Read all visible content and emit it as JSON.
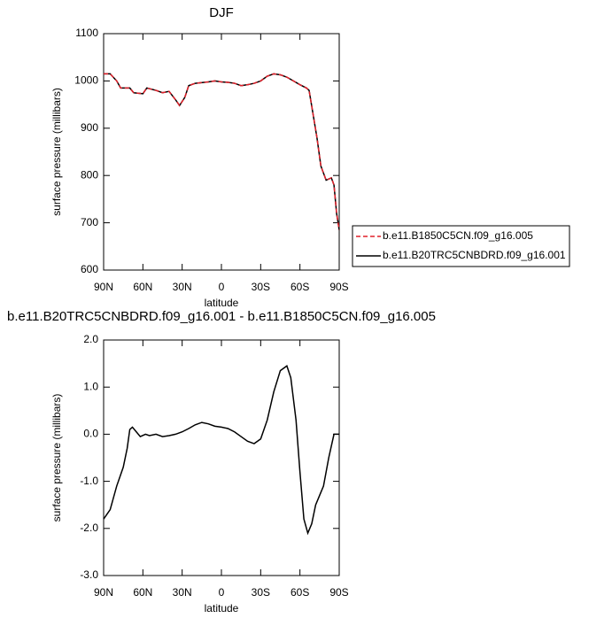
{
  "chart_data": [
    {
      "type": "line",
      "title": "DJF",
      "x_label": "latitude",
      "y_label": "surface pressure (millibars)",
      "xlim": [
        90,
        -90
      ],
      "xticks": [
        {
          "value": 90,
          "label": "90N"
        },
        {
          "value": 60,
          "label": "60N"
        },
        {
          "value": 30,
          "label": "30N"
        },
        0,
        {
          "value": -30,
          "label": "30S"
        },
        {
          "value": -60,
          "label": "60S"
        },
        {
          "value": -90,
          "label": "90S"
        }
      ],
      "ylim": [
        600,
        1100
      ],
      "yticks": [
        600,
        700,
        800,
        900,
        1000,
        1100
      ],
      "legend_position": "right",
      "x": [
        90,
        85,
        80,
        77,
        70,
        67,
        60,
        57,
        50,
        45,
        40,
        35,
        32,
        28,
        25,
        20,
        10,
        5,
        0,
        -5,
        -10,
        -15,
        -20,
        -25,
        -30,
        -35,
        -40,
        -45,
        -50,
        -55,
        -60,
        -65,
        -67,
        -70,
        -73,
        -76,
        -80,
        -84,
        -86,
        -88,
        -90
      ],
      "series": [
        {
          "name": "b.e11.B1850C5CN.f09_g16.005",
          "color": "#e0202a",
          "dash": true,
          "values": [
            1015,
            1015,
            1000,
            985,
            985,
            975,
            973,
            985,
            980,
            975,
            978,
            960,
            948,
            965,
            990,
            995,
            998,
            1000,
            998,
            997,
            995,
            990,
            992,
            995,
            1000,
            1010,
            1015,
            1013,
            1008,
            1000,
            992,
            985,
            980,
            930,
            880,
            820,
            790,
            795,
            780,
            720,
            685
          ]
        },
        {
          "name": "b.e11.B20TRC5CNBDRD.f09_g16.001",
          "color": "#000000",
          "dash": false,
          "values": [
            1015,
            1015,
            1000,
            985,
            985,
            975,
            973,
            985,
            980,
            975,
            978,
            960,
            948,
            965,
            990,
            995,
            998,
            1000,
            998,
            997,
            995,
            990,
            992,
            995,
            1000,
            1010,
            1015,
            1013,
            1008,
            1000,
            992,
            985,
            980,
            930,
            880,
            820,
            790,
            795,
            780,
            720,
            685
          ]
        }
      ]
    },
    {
      "type": "line",
      "title": "b.e11.B20TRC5CNBDRD.f09_g16.001 - b.e11.B1850C5CN.f09_g16.005",
      "x_label": "latitude",
      "y_label": "surface pressure (millibars)",
      "xlim": [
        90,
        -90
      ],
      "xticks": [
        {
          "value": 90,
          "label": "90N"
        },
        {
          "value": 60,
          "label": "60N"
        },
        {
          "value": 30,
          "label": "30N"
        },
        0,
        {
          "value": -30,
          "label": "30S"
        },
        {
          "value": -60,
          "label": "60S"
        },
        {
          "value": -90,
          "label": "90S"
        }
      ],
      "ylim": [
        -3,
        2
      ],
      "yticks": [
        {
          "value": -3,
          "label": "-3.0"
        },
        {
          "value": -2,
          "label": "-2.0"
        },
        {
          "value": -1,
          "label": "-1.0"
        },
        {
          "value": 0,
          "label": "0.0"
        },
        {
          "value": 1,
          "label": "1.0"
        },
        {
          "value": 2,
          "label": "2.0"
        }
      ],
      "x": [
        90,
        85,
        80,
        75,
        72,
        70,
        68,
        65,
        62,
        58,
        55,
        50,
        45,
        40,
        35,
        30,
        25,
        20,
        15,
        10,
        5,
        0,
        -5,
        -10,
        -15,
        -20,
        -25,
        -30,
        -35,
        -40,
        -45,
        -50,
        -53,
        -57,
        -60,
        -63,
        -66,
        -69,
        -72,
        -75,
        -78,
        -82,
        -86,
        -90
      ],
      "series": [
        {
          "color": "#000000",
          "values": [
            -1.8,
            -1.6,
            -1.1,
            -0.7,
            -0.3,
            0.1,
            0.15,
            0.05,
            -0.05,
            0.0,
            -0.03,
            0.0,
            -0.05,
            -0.03,
            0.0,
            0.05,
            0.12,
            0.2,
            0.25,
            0.22,
            0.17,
            0.15,
            0.12,
            0.05,
            -0.05,
            -0.15,
            -0.2,
            -0.1,
            0.3,
            0.9,
            1.35,
            1.45,
            1.2,
            0.3,
            -0.8,
            -1.8,
            -2.1,
            -1.9,
            -1.5,
            -1.3,
            -1.1,
            -0.5,
            0.0,
            0.0
          ]
        }
      ]
    }
  ]
}
